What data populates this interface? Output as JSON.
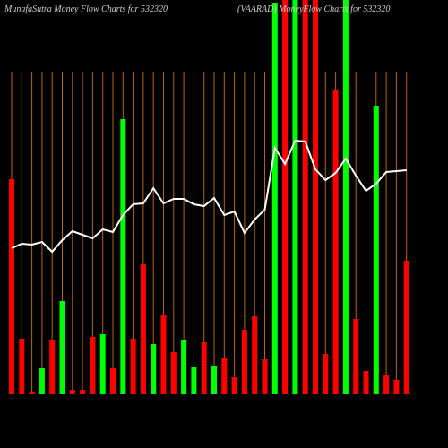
{
  "chart_data": {
    "type": "bar",
    "title": "MunafaSutra  Money Flow  Charts for 532320",
    "subtitle": "(VAARAD) MoneyFlow  Charts for 532320",
    "values": [
      240,
      62,
      3,
      29,
      61,
      104,
      5,
      5,
      64,
      67,
      29,
      307,
      62,
      145,
      56,
      88,
      47,
      61,
      30,
      58,
      32,
      40,
      19,
      72,
      87,
      39,
      437,
      440,
      440,
      440,
      440,
      45,
      340,
      440,
      84,
      26,
      322,
      21,
      16,
      149
    ],
    "colors": [
      "#ff0000",
      "#ff0000",
      "#ff0000",
      "#00ff00",
      "#ff0000",
      "#00ff00",
      "#ff0000",
      "#ff0000",
      "#ff0000",
      "#00ff00",
      "#ff0000",
      "#00ff00",
      "#ff0000",
      "#ff0000",
      "#00ff00",
      "#ff0000",
      "#ff0000",
      "#00ff00",
      "#00ff00",
      "#ff0000",
      "#00ff00",
      "#ff0000",
      "#ff0000",
      "#ff0000",
      "#ff0000",
      "#ff0000",
      "#00ff00",
      "#ff0000",
      "#00ff00",
      "#ff0000",
      "#ff0000",
      "#ff0000",
      "#ff0000",
      "#00ff00",
      "#ff0000",
      "#ff0000",
      "#00ff00",
      "#ff0000",
      "#ff0000",
      "#ff0000"
    ],
    "line_values": [
      163,
      168,
      167,
      170,
      159,
      172,
      182,
      178,
      174,
      184,
      181,
      200,
      212,
      213,
      230,
      213,
      218,
      218,
      212,
      210,
      219,
      200,
      204,
      180,
      195,
      206,
      275,
      257,
      283,
      282,
      251,
      239,
      247,
      263,
      244,
      227,
      235,
      248,
      249,
      250
    ],
    "line_color": "#ffffff",
    "grid_color": "#b8650a",
    "ylim": [
      0,
      440
    ]
  }
}
